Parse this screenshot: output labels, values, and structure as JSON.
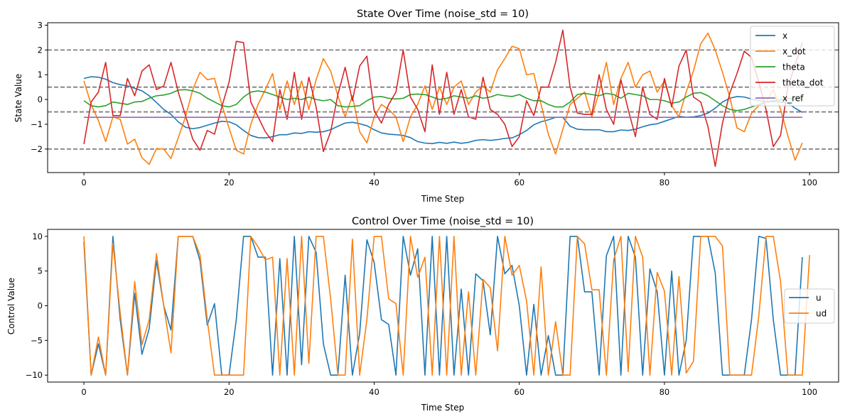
{
  "colors": {
    "x": "#1f77b4",
    "x_dot": "#ff7f0e",
    "theta": "#2ca02c",
    "theta_dot": "#d62728",
    "x_ref": "#9467bd",
    "u": "#1f77b4",
    "ud": "#ff7f0e",
    "reference_lines": "#808080"
  },
  "chart_data": [
    {
      "type": "line",
      "title": "State Over Time (noise_std = 10)",
      "xlabel": "Time Step",
      "ylabel": "State Value",
      "xlim": [
        -5,
        104
      ],
      "ylim": [
        -2.95,
        3.1
      ],
      "xticks": [
        0,
        20,
        40,
        60,
        80,
        100
      ],
      "yticks": [
        -2,
        -1,
        0,
        1,
        2,
        3
      ],
      "grid": false,
      "legend": "top-right",
      "hlines": [
        2,
        0.5,
        -0.5,
        -2
      ],
      "series": [
        {
          "name": "x",
          "values": [
            0.85,
            0.92,
            0.9,
            0.82,
            0.68,
            0.6,
            0.55,
            0.45,
            0.35,
            0.15,
            -0.12,
            -0.4,
            -0.6,
            -0.9,
            -1.12,
            -1.18,
            -1.13,
            -1.04,
            -0.95,
            -0.88,
            -0.9,
            -1.02,
            -1.25,
            -1.45,
            -1.54,
            -1.55,
            -1.5,
            -1.42,
            -1.42,
            -1.35,
            -1.37,
            -1.3,
            -1.32,
            -1.3,
            -1.22,
            -1.08,
            -0.95,
            -0.92,
            -0.98,
            -1.06,
            -1.22,
            -1.35,
            -1.4,
            -1.42,
            -1.45,
            -1.54,
            -1.7,
            -1.76,
            -1.78,
            -1.73,
            -1.77,
            -1.72,
            -1.77,
            -1.73,
            -1.65,
            -1.62,
            -1.65,
            -1.62,
            -1.57,
            -1.55,
            -1.42,
            -1.25,
            -1.02,
            -0.9,
            -0.82,
            -0.72,
            -0.72,
            -1.08,
            -1.2,
            -1.22,
            -1.22,
            -1.22,
            -1.3,
            -1.3,
            -1.23,
            -1.25,
            -1.2,
            -1.1,
            -1.02,
            -0.98,
            -0.88,
            -0.78,
            -0.68,
            -0.72,
            -0.7,
            -0.65,
            -0.55,
            -0.35,
            -0.1,
            0.05,
            0.12,
            0.1,
            0.02,
            -0.05,
            -0.1,
            -0.08,
            -0.1,
            -0.15,
            -0.35,
            -0.52
          ]
        },
        {
          "name": "x_dot",
          "values": [
            0.75,
            -0.2,
            -0.85,
            -1.7,
            -0.7,
            -0.8,
            -1.8,
            -1.6,
            -2.35,
            -2.62,
            -1.98,
            -2.0,
            -2.38,
            -1.55,
            -0.7,
            0.4,
            1.1,
            0.8,
            0.85,
            -0.2,
            -1.15,
            -2.05,
            -2.2,
            -1.0,
            -0.2,
            0.4,
            1.05,
            -0.4,
            0.75,
            -0.2,
            0.75,
            -0.4,
            0.8,
            1.65,
            1.15,
            0.15,
            -0.7,
            0.15,
            -1.3,
            -1.75,
            -0.7,
            -0.2,
            -0.4,
            -0.7,
            -1.7,
            -0.7,
            -0.2,
            0.55,
            -0.4,
            0.5,
            -0.2,
            0.5,
            0.75,
            -0.2,
            0.3,
            0.55,
            0.3,
            1.2,
            1.65,
            2.15,
            2.05,
            1.0,
            1.05,
            -0.2,
            -1.4,
            -2.2,
            -1.2,
            -0.2,
            0.05,
            0.3,
            -0.7,
            0.3,
            1.5,
            -0.2,
            0.85,
            1.5,
            0.5,
            1.0,
            1.15,
            0.3,
            0.75,
            -0.25,
            -0.7,
            0.3,
            1.15,
            2.25,
            2.68,
            2.0,
            1.1,
            0.1,
            -1.15,
            -1.3,
            -0.55,
            -0.25,
            -0.1,
            0.4,
            -0.4,
            -1.45,
            -2.45,
            -1.75
          ]
        },
        {
          "name": "theta",
          "values": [
            -0.05,
            -0.25,
            -0.3,
            -0.25,
            -0.1,
            -0.15,
            -0.2,
            -0.1,
            -0.08,
            0.05,
            0.15,
            0.18,
            0.25,
            0.38,
            0.4,
            0.35,
            0.25,
            0.05,
            -0.1,
            -0.25,
            -0.3,
            -0.2,
            0.1,
            0.3,
            0.35,
            0.3,
            0.2,
            0.1,
            0.0,
            0.05,
            0.0,
            0.1,
            0.0,
            -0.05,
            0.0,
            -0.25,
            -0.3,
            -0.28,
            -0.25,
            -0.05,
            0.1,
            0.12,
            0.05,
            0.02,
            0.05,
            0.2,
            0.22,
            0.2,
            0.1,
            0.0,
            0.05,
            0.15,
            0.1,
            0.05,
            0.15,
            0.05,
            0.1,
            0.2,
            0.15,
            0.12,
            0.2,
            0.05,
            -0.05,
            -0.05,
            -0.2,
            -0.3,
            -0.3,
            -0.1,
            0.2,
            0.25,
            0.2,
            0.15,
            0.25,
            0.2,
            0.05,
            0.25,
            0.2,
            0.15,
            0.0,
            0.0,
            -0.05,
            -0.15,
            -0.1,
            0.1,
            0.25,
            0.28,
            0.15,
            -0.05,
            -0.25,
            -0.4,
            -0.45,
            -0.4,
            -0.3,
            -0.2,
            -0.1,
            -0.05,
            0.0,
            0.05,
            0.0,
            0.05
          ]
        },
        {
          "name": "theta_dot",
          "values": [
            -1.8,
            -0.1,
            0.3,
            1.5,
            -0.65,
            -0.65,
            0.85,
            0.15,
            1.15,
            1.4,
            0.4,
            0.55,
            1.5,
            0.3,
            -0.65,
            -1.6,
            -2.05,
            -1.25,
            -1.4,
            -0.3,
            0.7,
            2.35,
            2.3,
            -0.1,
            -0.7,
            -1.3,
            -1.7,
            0.4,
            -0.8,
            1.1,
            -0.8,
            0.9,
            -0.3,
            -2.1,
            -1.3,
            0.2,
            1.3,
            -0.05,
            1.35,
            1.75,
            -0.45,
            -0.95,
            -0.2,
            0.3,
            2.0,
            0.1,
            -0.4,
            -1.3,
            1.4,
            -0.6,
            1.1,
            -0.6,
            0.4,
            -0.7,
            -0.8,
            0.9,
            -0.4,
            -0.6,
            -1.0,
            -1.9,
            -1.5,
            -0.05,
            -0.65,
            0.5,
            0.5,
            1.5,
            2.8,
            0.5,
            -0.55,
            -0.6,
            -0.6,
            1.0,
            -0.4,
            -1.0,
            0.8,
            -0.4,
            -1.5,
            0.5,
            -0.6,
            -0.8,
            0.85,
            -0.3,
            1.35,
            2.0,
            0.1,
            -0.1,
            -1.1,
            -2.7,
            -0.95,
            0.25,
            1.05,
            1.95,
            1.7,
            0.7,
            -0.4,
            -1.9,
            -1.45,
            0.5,
            1.4,
            2.3
          ]
        },
        {
          "name": "x_ref",
          "values": [
            -0.72,
            -0.72,
            -0.72,
            -0.72,
            -0.72,
            -0.72,
            -0.72,
            -0.72,
            -0.72,
            -0.72,
            -0.72,
            -0.72,
            -0.72,
            -0.72,
            -0.72,
            -0.72,
            -0.72,
            -0.72,
            -0.72,
            -0.72,
            -0.72,
            -0.72,
            -0.72,
            -0.72,
            -0.72,
            -0.72,
            -0.72,
            -0.72,
            -0.72,
            -0.72,
            -0.72,
            -0.72,
            -0.72,
            -0.72,
            -0.72,
            -0.72,
            -0.72,
            -0.72,
            -0.72,
            -0.72,
            -0.72,
            -0.72,
            -0.72,
            -0.72,
            -0.72,
            -0.72,
            -0.72,
            -0.72,
            -0.72,
            -0.72,
            -0.72,
            -0.72,
            -0.72,
            -0.72,
            -0.72,
            -0.72,
            -0.72,
            -0.72,
            -0.72,
            -0.72,
            -0.72,
            -0.72,
            -0.72,
            -0.72,
            -0.72,
            -0.72,
            -0.72,
            -0.72,
            -0.72,
            -0.72,
            -0.72,
            -0.72,
            -0.72,
            -0.72,
            -0.72,
            -0.72,
            -0.72,
            -0.72,
            -0.72,
            -0.72,
            -0.72,
            -0.72,
            -0.72,
            -0.72,
            -0.72,
            -0.72,
            -0.72,
            -0.72,
            -0.72,
            -0.72,
            -0.72,
            -0.72,
            -0.72,
            -0.72,
            -0.72,
            -0.72,
            -0.72,
            -0.72,
            -0.72,
            -0.72
          ]
        }
      ]
    },
    {
      "type": "line",
      "title": "Control Over Time (noise_std = 10)",
      "xlabel": "Time Step",
      "ylabel": "Control Value",
      "xlim": [
        -5,
        104
      ],
      "ylim": [
        -11,
        11
      ],
      "xticks": [
        0,
        20,
        40,
        60,
        80,
        100
      ],
      "yticks": [
        -10,
        -5,
        0,
        5,
        10
      ],
      "grid": false,
      "legend": "center-right",
      "series": [
        {
          "name": "u",
          "values": [
            9.2,
            -10,
            -5.5,
            -10,
            10,
            -2,
            -10,
            1.8,
            -7.0,
            -3.3,
            6.5,
            0,
            -3.5,
            10,
            10,
            10,
            6.5,
            -2.8,
            0.3,
            -10,
            -10,
            -2.0,
            10,
            10,
            7.0,
            7.0,
            -10,
            6.8,
            -10,
            10,
            -8.5,
            10,
            7.7,
            -5.5,
            -10,
            -10,
            4.4,
            -10,
            -4.0,
            9.5,
            6.2,
            -2.0,
            -2.7,
            -10,
            10,
            4.4,
            8.2,
            -10,
            10,
            -10,
            10,
            -10,
            2.4,
            -10,
            4.6,
            3.6,
            -4.2,
            10,
            4.6,
            5.8,
            0.0,
            -10,
            0.2,
            -10,
            -4.3,
            -10,
            -10,
            10,
            10,
            2.0,
            2.0,
            -10,
            7.2,
            10,
            -10,
            10,
            7.0,
            -10,
            5.3,
            2.0,
            -10,
            5.0,
            -10,
            -5.0,
            10,
            10,
            10,
            4.7,
            -10,
            -10,
            -10,
            -10,
            -2.0,
            10,
            9.7,
            -2.0,
            -10,
            -10,
            -10,
            7.0
          ]
        },
        {
          "name": "ud",
          "values": [
            10,
            -10,
            -4.5,
            -10,
            9.0,
            -1.0,
            -10,
            3.5,
            -5.6,
            -2.0,
            7.5,
            0,
            -6.8,
            10,
            10,
            10,
            7.3,
            -2.0,
            -10,
            -10,
            -10,
            -10,
            -10,
            10,
            8.5,
            6.6,
            7.0,
            -10,
            6.8,
            -10,
            10,
            -8.3,
            10,
            10,
            1.0,
            -10,
            -10,
            9.6,
            -10,
            -2.0,
            10,
            10,
            1.0,
            0.3,
            -10,
            10,
            4.1,
            7.0,
            -10,
            10,
            -10,
            10,
            -10,
            2.0,
            -10,
            3.8,
            2.6,
            -6.5,
            10,
            4.4,
            5.8,
            0.7,
            -10,
            5.6,
            -10,
            -2.3,
            -10,
            -10,
            10,
            8.9,
            2.3,
            2.3,
            -10,
            6.6,
            10,
            -9.5,
            10,
            7.0,
            -10,
            4.8,
            2.1,
            -10,
            4.2,
            -9.7,
            -8.0,
            10,
            10,
            10,
            8.6,
            -10,
            -10,
            -10,
            -10,
            -1.5,
            10,
            10,
            3.5,
            -10,
            -10,
            -10,
            7.3
          ]
        }
      ]
    }
  ]
}
